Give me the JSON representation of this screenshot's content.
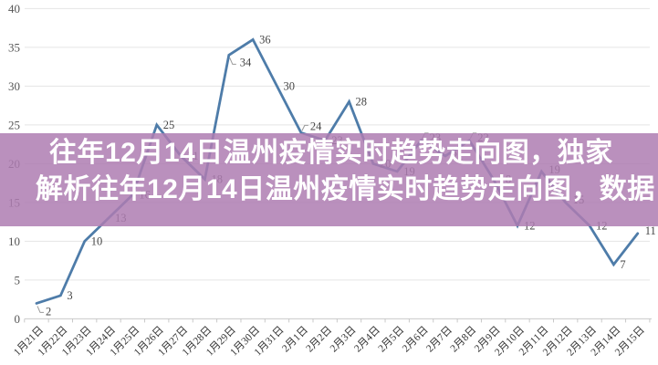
{
  "page": {
    "background": "#ffffff"
  },
  "overlay": {
    "line1": "往年12月14日温州疫情实时趋势走向图，独家",
    "line2": "解析往年12月14日温州疫情实时趋势走向图，数据",
    "bg_color": "#ae7cb2",
    "bg_opacity": 0.85,
    "text_color": "#ffffff"
  },
  "chart_data": {
    "type": "line",
    "title": "",
    "xlabel": "",
    "ylabel": "",
    "categories": [
      "1月21日",
      "1月22日",
      "1月23日",
      "1月24日",
      "1月25日",
      "1月26日",
      "1月27日",
      "1月28日",
      "1月29日",
      "1月30日",
      "1月31日",
      "2月1日",
      "2月2日",
      "2月3日",
      "2月4日",
      "2月5日",
      "2月6日",
      "2月7日",
      "2月8日",
      "2月9日",
      "2月10日",
      "2月11日",
      "2月12日",
      "2月13日",
      "2月14日",
      "2月15日"
    ],
    "values": [
      2,
      3,
      10,
      13,
      16,
      25,
      21,
      18,
      34,
      36,
      30,
      24,
      23,
      28,
      20,
      19,
      23,
      21,
      23,
      18,
      12,
      19,
      15,
      12,
      7,
      11
    ],
    "values_obscured_by_banner_indices": [
      14,
      15,
      17,
      19
    ],
    "ylim": [
      0,
      40
    ],
    "y_ticks": [
      0,
      5,
      10,
      15,
      20,
      25,
      30,
      35,
      40
    ],
    "grid": true,
    "legend": "none",
    "line_color": "#4e7ca9",
    "data_label_color": "#454545",
    "x_label_color": "#333333",
    "y_label_color": "#555555",
    "grid_color": "#e5e5e5",
    "axis_color": "#c9c9c9"
  }
}
